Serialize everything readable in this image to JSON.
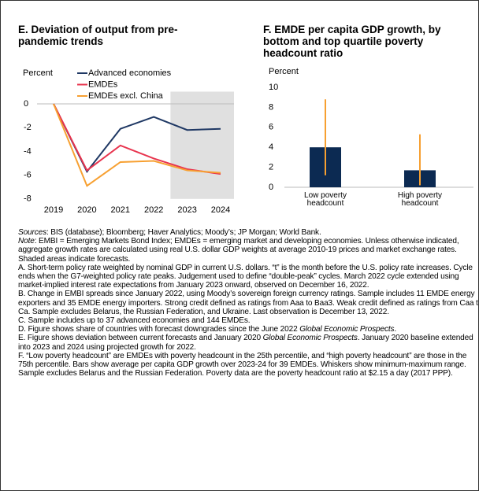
{
  "chart_data": [
    {
      "type": "line",
      "title": "E. Deviation of output from pre-pandemic trends",
      "ylabel": "Percent",
      "categories": [
        "2019",
        "2020",
        "2021",
        "2022",
        "2023",
        "2024"
      ],
      "series": [
        {
          "name": "Advanced economies",
          "color": "#1f3864",
          "values": [
            0,
            -5.7,
            -2.1,
            -1.1,
            -2.2,
            -2.1
          ]
        },
        {
          "name": "EMDEs",
          "color": "#e8344e",
          "values": [
            0,
            -5.6,
            -3.5,
            -4.6,
            -5.5,
            -5.9
          ]
        },
        {
          "name": "EMDEs excl. China",
          "color": "#f7a031",
          "values": [
            0,
            -6.9,
            -4.9,
            -4.8,
            -5.6,
            -5.8
          ]
        }
      ],
      "ylim": [
        -8,
        0.5
      ],
      "yticks": [
        0,
        -2,
        -4,
        -6,
        -8
      ],
      "shaded_from": "2023",
      "shade_color": "#e0e0e0"
    },
    {
      "type": "bar",
      "title": "F. EMDE per capita GDP growth, by bottom and top quartile poverty headcount ratio",
      "ylabel": "Percent",
      "categories": [
        "Low poverty headcount",
        "High poverty headcount"
      ],
      "values": [
        4.0,
        1.7
      ],
      "min": [
        1.2,
        0.2
      ],
      "max": [
        8.8,
        5.3
      ],
      "color": "#0c2a52",
      "whisker_color": "#f7a031",
      "ylim": [
        0,
        10
      ],
      "yticks": [
        0,
        2,
        4,
        6,
        8,
        10
      ]
    }
  ],
  "notes": [
    [
      {
        "text": "Sources",
        "italic": true
      },
      {
        "text": ": BIS (database); Bloomberg; Haver Analytics; Moody’s; JP Morgan; World Bank."
      }
    ],
    [
      {
        "text": "Note",
        "italic": true
      },
      {
        "text": ": EMBI = Emerging Markets Bond Index; EMDEs = emerging market and developing economies. Unless otherwise indicated, aggregate growth rates are calculated using real U.S. dollar GDP weights at average 2010-19 prices and market exchange rates. Shaded areas indicate forecasts."
      }
    ],
    [
      {
        "text": "A. Short-term policy rate weighted by nominal GDP in current U.S. dollars. “t” is the month before the U.S. policy rate increases. Cycle ends when the G7-weighted policy rate peaks. Judgement used to define “double-peak” cycles. March 2022 cycle extended using market-implied interest rate expectations from January 2023 onward, observed on December 16, 2022."
      }
    ],
    [
      {
        "text": "B. Change in EMBI spreads since January 2022, using Moody’s sovereign foreign currency ratings. Sample includes 11 EMDE energy exporters and 35 EMDE energy importers. Strong credit defined as ratings from Aaa to Baa3. Weak credit defined as ratings from Caa to Ca. Sample excludes Belarus, the Russian Federation, and Ukraine. Last observation is December 13, 2022."
      }
    ],
    [
      {
        "text": "C. Sample includes up to 37 advanced economies and 144 EMDEs."
      }
    ],
    [
      {
        "text": "D. Figure shows share of countries with forecast downgrades since the June 2022 "
      },
      {
        "text": "Global Economic Prospects",
        "italic": true
      },
      {
        "text": "."
      }
    ],
    [
      {
        "text": "E. Figure shows deviation between current forecasts and January 2020 "
      },
      {
        "text": "Global Economic Prospects",
        "italic": true
      },
      {
        "text": ". January 2020 baseline extended into 2023 and 2024 using projected growth for 2022."
      }
    ],
    [
      {
        "text": "F. “Low poverty headcount” are EMDEs with poverty headcount in the 25th percentile, and “high poverty headcount” are those in the 75th percentile. Bars show average per capita GDP growth over 2023-24 for 39 EMDEs. Whiskers show minimum-maximum range. Sample excludes Belarus and the Russian Federation. Poverty data are the poverty headcount ratio at $2.15 a day (2017 PPP)."
      }
    ]
  ]
}
